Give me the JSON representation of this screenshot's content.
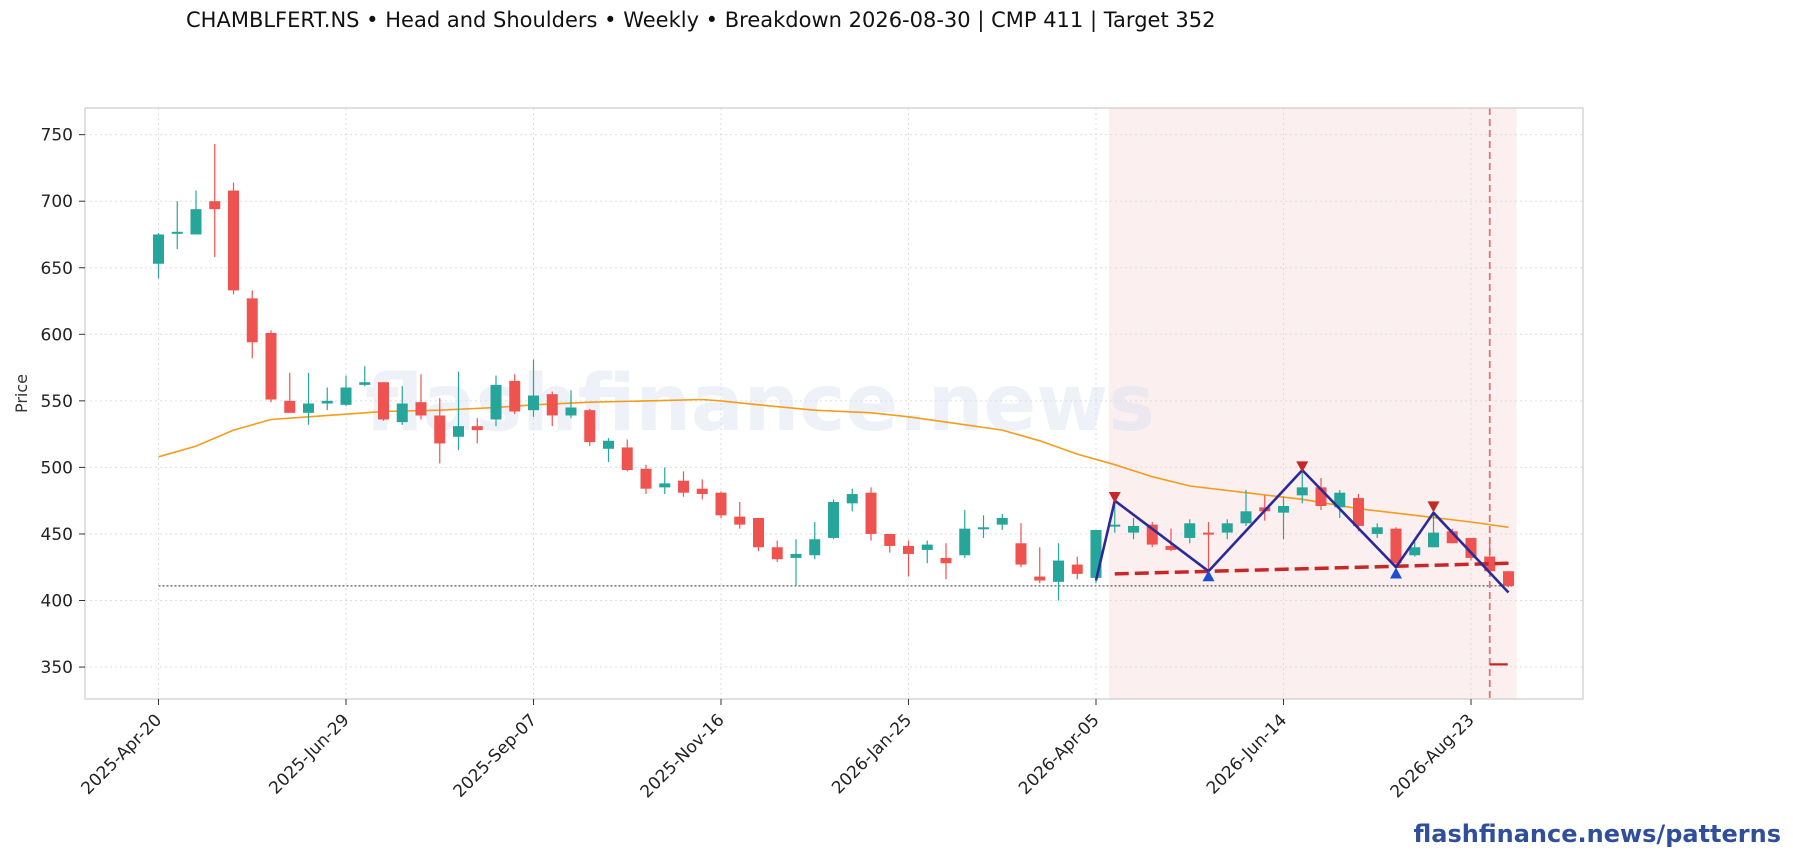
{
  "title": "CHAMBLFERT.NS  •  Head and Shoulders  •  Weekly  •  Breakdown 2026-08-30  |  CMP 411  |  Target 352",
  "watermark": "flashfinance.news",
  "footer_link": "flashfinance.news/patterns",
  "colors": {
    "up": "#26a69a",
    "down": "#ef5350",
    "ma": "#f59c1a",
    "pattern": "#2a2a9a",
    "neckline": "#c62828",
    "peak_marker": "#c62828",
    "trough_marker": "#1f4fcf",
    "shade": "#fbe9e9",
    "breakdown_line": "#e57373",
    "reference_line": "#333333"
  },
  "chart_data": {
    "type": "candlestick",
    "ylabel": "Price",
    "ylim": [
      327,
      770
    ],
    "yticks": [
      350,
      400,
      450,
      500,
      550,
      600,
      650,
      700,
      750
    ],
    "xticks": [
      "2025-Apr-20",
      "2025-Jun-29",
      "2025-Sep-07",
      "2025-Nov-16",
      "2026-Jan-25",
      "2026-Apr-05",
      "2026-Jun-14",
      "2026-Aug-23"
    ],
    "grid": true,
    "candles": [
      {
        "date": "2025-Apr-20",
        "open": 653,
        "high": 676,
        "low": 642,
        "close": 675
      },
      {
        "date": "2025-Apr-27",
        "open": 677,
        "high": 700,
        "low": 664,
        "close": 677
      },
      {
        "date": "2025-May-04",
        "open": 675,
        "high": 708,
        "low": 675,
        "close": 694
      },
      {
        "date": "2025-May-11",
        "open": 700,
        "high": 743,
        "low": 658,
        "close": 694
      },
      {
        "date": "2025-May-18",
        "open": 708,
        "high": 714,
        "low": 630,
        "close": 633
      },
      {
        "date": "2025-May-25",
        "open": 627,
        "high": 633,
        "low": 582,
        "close": 594
      },
      {
        "date": "2025-Jun-01",
        "open": 601,
        "high": 603,
        "low": 549,
        "close": 551
      },
      {
        "date": "2025-Jun-08",
        "open": 550,
        "high": 571,
        "low": 542,
        "close": 541
      },
      {
        "date": "2025-Jun-15",
        "open": 541,
        "high": 571,
        "low": 532,
        "close": 548
      },
      {
        "date": "2025-Jun-22",
        "open": 548,
        "high": 560,
        "low": 543,
        "close": 550
      },
      {
        "date": "2025-Jun-29",
        "open": 547,
        "high": 569,
        "low": 546,
        "close": 560
      },
      {
        "date": "2025-Jul-06",
        "open": 562,
        "high": 576,
        "low": 561,
        "close": 564
      },
      {
        "date": "2025-Jul-13",
        "open": 564,
        "high": 564,
        "low": 535,
        "close": 536
      },
      {
        "date": "2025-Jul-20",
        "open": 534,
        "high": 561,
        "low": 532,
        "close": 548
      },
      {
        "date": "2025-Jul-27",
        "open": 549,
        "high": 570,
        "low": 536,
        "close": 539
      },
      {
        "date": "2025-Aug-03",
        "open": 539,
        "high": 552,
        "low": 503,
        "close": 518
      },
      {
        "date": "2025-Aug-10",
        "open": 523,
        "high": 572,
        "low": 513,
        "close": 531
      },
      {
        "date": "2025-Aug-17",
        "open": 531,
        "high": 537,
        "low": 518,
        "close": 528
      },
      {
        "date": "2025-Aug-24",
        "open": 536,
        "high": 569,
        "low": 531,
        "close": 562
      },
      {
        "date": "2025-Aug-31",
        "open": 565,
        "high": 570,
        "low": 540,
        "close": 542
      },
      {
        "date": "2025-Sep-07",
        "open": 543,
        "high": 581,
        "low": 538,
        "close": 554
      },
      {
        "date": "2025-Sep-14",
        "open": 555,
        "high": 557,
        "low": 531,
        "close": 539
      },
      {
        "date": "2025-Sep-21",
        "open": 539,
        "high": 558,
        "low": 537,
        "close": 545
      },
      {
        "date": "2025-Sep-28",
        "open": 543,
        "high": 544,
        "low": 516,
        "close": 519
      },
      {
        "date": "2025-Oct-05",
        "open": 514,
        "high": 522,
        "low": 504,
        "close": 520
      },
      {
        "date": "2025-Oct-12",
        "open": 515,
        "high": 521,
        "low": 497,
        "close": 498
      },
      {
        "date": "2025-Oct-19",
        "open": 499,
        "high": 502,
        "low": 480,
        "close": 484
      },
      {
        "date": "2025-Oct-26",
        "open": 485,
        "high": 500,
        "low": 480,
        "close": 488
      },
      {
        "date": "2025-Nov-02",
        "open": 490,
        "high": 497,
        "low": 478,
        "close": 481
      },
      {
        "date": "2025-Nov-09",
        "open": 484,
        "high": 491,
        "low": 476,
        "close": 480
      },
      {
        "date": "2025-Nov-16",
        "open": 481,
        "high": 482,
        "low": 462,
        "close": 464
      },
      {
        "date": "2025-Nov-23",
        "open": 463,
        "high": 474,
        "low": 454,
        "close": 457
      },
      {
        "date": "2025-Nov-30",
        "open": 462,
        "high": 462,
        "low": 437,
        "close": 440
      },
      {
        "date": "2025-Dec-07",
        "open": 440,
        "high": 445,
        "low": 429,
        "close": 431
      },
      {
        "date": "2025-Dec-14",
        "open": 432,
        "high": 446,
        "low": 411,
        "close": 435
      },
      {
        "date": "2025-Dec-21",
        "open": 434,
        "high": 459,
        "low": 431,
        "close": 446
      },
      {
        "date": "2025-Dec-28",
        "open": 447,
        "high": 476,
        "low": 446,
        "close": 474
      },
      {
        "date": "2026-Jan-04",
        "open": 473,
        "high": 484,
        "low": 467,
        "close": 480
      },
      {
        "date": "2026-Jan-11",
        "open": 481,
        "high": 485,
        "low": 445,
        "close": 450
      },
      {
        "date": "2026-Jan-18",
        "open": 450,
        "high": 450,
        "low": 436,
        "close": 441
      },
      {
        "date": "2026-Jan-25",
        "open": 441,
        "high": 445,
        "low": 418,
        "close": 435
      },
      {
        "date": "2026-Feb-01",
        "open": 438,
        "high": 445,
        "low": 428,
        "close": 442
      },
      {
        "date": "2026-Feb-08",
        "open": 432,
        "high": 443,
        "low": 416,
        "close": 428
      },
      {
        "date": "2026-Feb-15",
        "open": 434,
        "high": 468,
        "low": 432,
        "close": 454
      },
      {
        "date": "2026-Feb-22",
        "open": 454,
        "high": 464,
        "low": 447,
        "close": 455
      },
      {
        "date": "2026-Mar-01",
        "open": 457,
        "high": 465,
        "low": 453,
        "close": 462
      },
      {
        "date": "2026-Mar-08",
        "open": 443,
        "high": 458,
        "low": 425,
        "close": 427
      },
      {
        "date": "2026-Mar-15",
        "open": 418,
        "high": 440,
        "low": 413,
        "close": 415
      },
      {
        "date": "2026-Mar-22",
        "open": 414,
        "high": 443,
        "low": 400,
        "close": 430
      },
      {
        "date": "2026-Mar-29",
        "open": 427,
        "high": 433,
        "low": 416,
        "close": 420
      },
      {
        "date": "2026-Apr-05",
        "open": 417,
        "high": 453,
        "low": 413,
        "close": 453
      },
      {
        "date": "2026-Apr-12",
        "open": 456,
        "high": 477,
        "low": 451,
        "close": 457
      },
      {
        "date": "2026-Apr-19",
        "open": 451,
        "high": 462,
        "low": 446,
        "close": 456
      },
      {
        "date": "2026-Apr-26",
        "open": 457,
        "high": 459,
        "low": 440,
        "close": 442
      },
      {
        "date": "2026-May-03",
        "open": 441,
        "high": 454,
        "low": 437,
        "close": 438
      },
      {
        "date": "2026-May-10",
        "open": 447,
        "high": 461,
        "low": 443,
        "close": 458
      },
      {
        "date": "2026-May-17",
        "open": 451,
        "high": 459,
        "low": 420,
        "close": 450
      },
      {
        "date": "2026-May-24",
        "open": 451,
        "high": 461,
        "low": 446,
        "close": 458
      },
      {
        "date": "2026-May-31",
        "open": 458,
        "high": 483,
        "low": 456,
        "close": 467
      },
      {
        "date": "2026-Jun-07",
        "open": 470,
        "high": 479,
        "low": 460,
        "close": 467
      },
      {
        "date": "2026-Jun-14",
        "open": 466,
        "high": 478,
        "low": 446,
        "close": 471
      },
      {
        "date": "2026-Jun-21",
        "open": 479,
        "high": 500,
        "low": 473,
        "close": 485
      },
      {
        "date": "2026-Jun-28",
        "open": 485,
        "high": 492,
        "low": 468,
        "close": 471
      },
      {
        "date": "2026-Jul-05",
        "open": 470,
        "high": 483,
        "low": 462,
        "close": 481
      },
      {
        "date": "2026-Jul-12",
        "open": 477,
        "high": 480,
        "low": 452,
        "close": 456
      },
      {
        "date": "2026-Jul-19",
        "open": 450,
        "high": 458,
        "low": 447,
        "close": 455
      },
      {
        "date": "2026-Jul-26",
        "open": 454,
        "high": 455,
        "low": 425,
        "close": 428
      },
      {
        "date": "2026-Aug-02",
        "open": 434,
        "high": 444,
        "low": 433,
        "close": 440
      },
      {
        "date": "2026-Aug-09",
        "open": 440,
        "high": 467,
        "low": 440,
        "close": 451
      },
      {
        "date": "2026-Aug-16",
        "open": 452,
        "high": 454,
        "low": 443,
        "close": 443
      },
      {
        "date": "2026-Aug-23",
        "open": 447,
        "high": 447,
        "low": 430,
        "close": 432
      },
      {
        "date": "2026-Aug-30",
        "open": 433,
        "high": 446,
        "low": 421,
        "close": 422
      },
      {
        "date": "2026-Sep-06",
        "open": 422,
        "high": 422,
        "low": 410,
        "close": 411
      }
    ],
    "moving_average": [
      {
        "date": "2025-Apr-20",
        "value": 508
      },
      {
        "date": "2025-May-04",
        "value": 516
      },
      {
        "date": "2025-May-18",
        "value": 528
      },
      {
        "date": "2025-Jun-01",
        "value": 536
      },
      {
        "date": "2025-Jun-15",
        "value": 538
      },
      {
        "date": "2025-Jun-29",
        "value": 540
      },
      {
        "date": "2025-Jul-13",
        "value": 542
      },
      {
        "date": "2025-Aug-03",
        "value": 543
      },
      {
        "date": "2025-Aug-24",
        "value": 545
      },
      {
        "date": "2025-Sep-07",
        "value": 547
      },
      {
        "date": "2025-Sep-28",
        "value": 549
      },
      {
        "date": "2025-Oct-19",
        "value": 550
      },
      {
        "date": "2025-Nov-09",
        "value": 551
      },
      {
        "date": "2025-Nov-16",
        "value": 550
      },
      {
        "date": "2025-Nov-30",
        "value": 547
      },
      {
        "date": "2025-Dec-21",
        "value": 543
      },
      {
        "date": "2026-Jan-11",
        "value": 541
      },
      {
        "date": "2026-Jan-25",
        "value": 538
      },
      {
        "date": "2026-Feb-08",
        "value": 534
      },
      {
        "date": "2026-Mar-01",
        "value": 528
      },
      {
        "date": "2026-Mar-15",
        "value": 520
      },
      {
        "date": "2026-Mar-29",
        "value": 510
      },
      {
        "date": "2026-Apr-12",
        "value": 502
      },
      {
        "date": "2026-Apr-26",
        "value": 493
      },
      {
        "date": "2026-May-10",
        "value": 486
      },
      {
        "date": "2026-May-31",
        "value": 481
      },
      {
        "date": "2026-Jun-21",
        "value": 476
      },
      {
        "date": "2026-Jul-12",
        "value": 469
      },
      {
        "date": "2026-Aug-02",
        "value": 464
      },
      {
        "date": "2026-Aug-23",
        "value": 459
      },
      {
        "date": "2026-Sep-06",
        "value": 455
      }
    ],
    "pattern_line": [
      {
        "date": "2026-Apr-05",
        "value": 415
      },
      {
        "date": "2026-Apr-12",
        "value": 475
      },
      {
        "date": "2026-May-17",
        "value": 422
      },
      {
        "date": "2026-Jun-21",
        "value": 498
      },
      {
        "date": "2026-Jul-26",
        "value": 425
      },
      {
        "date": "2026-Aug-09",
        "value": 466
      },
      {
        "date": "2026-Sep-06",
        "value": 406
      }
    ],
    "peaks": [
      {
        "date": "2026-Apr-12",
        "value": 477
      },
      {
        "date": "2026-Jun-21",
        "value": 500
      },
      {
        "date": "2026-Aug-09",
        "value": 470
      }
    ],
    "troughs": [
      {
        "date": "2026-May-17",
        "value": 419
      },
      {
        "date": "2026-Jul-26",
        "value": 421
      }
    ],
    "neckline": [
      {
        "date": "2026-Apr-12",
        "value": 420
      },
      {
        "date": "2026-Sep-06",
        "value": 428
      }
    ],
    "pattern_zone": {
      "start": "2026-Apr-12",
      "end": "2026-Sep-06"
    },
    "breakdown_date": "2026-Aug-30",
    "cmp": 411,
    "target": 352
  }
}
